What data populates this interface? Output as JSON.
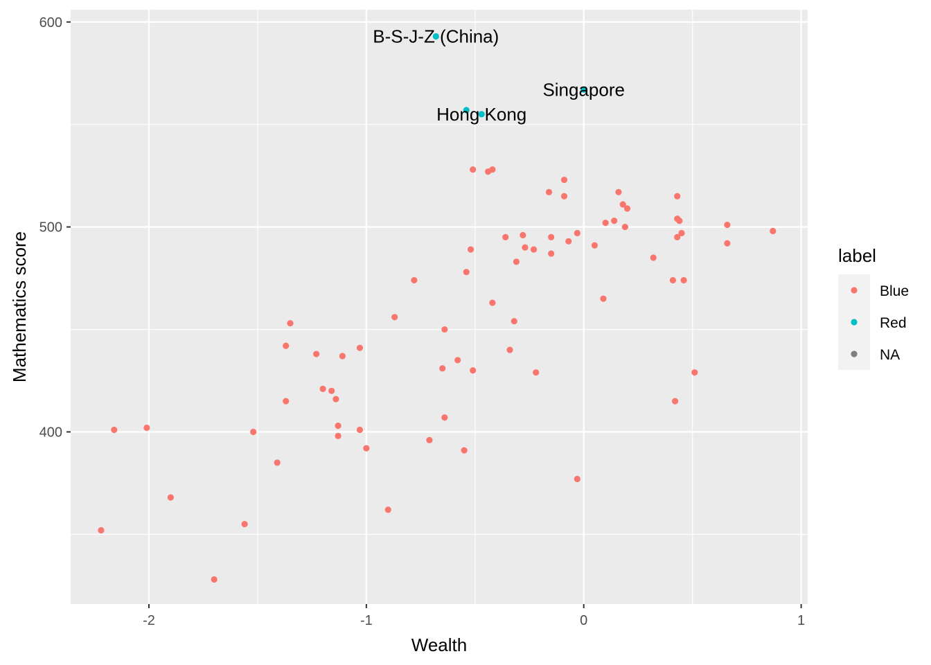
{
  "chart_data": {
    "type": "scatter",
    "title": "",
    "xlabel": "Wealth",
    "ylabel": "Mathematics score",
    "xlim": [
      -2.36,
      1.03
    ],
    "ylim": [
      316,
      606
    ],
    "x_ticks": [
      -2,
      -1,
      0,
      1
    ],
    "x_tick_labels": [
      "-2",
      "-1",
      "0",
      "1"
    ],
    "y_ticks": [
      400,
      500,
      600
    ],
    "y_tick_labels": [
      "400",
      "500",
      "600"
    ],
    "grid": true,
    "legend": {
      "title": "label",
      "position": "right",
      "entries": [
        {
          "label": "Blue",
          "color": "#F8766D"
        },
        {
          "label": "Red",
          "color": "#00BFC4"
        },
        {
          "label": "NA",
          "color": "#7F7F7F"
        }
      ]
    },
    "series": [
      {
        "name": "Blue",
        "color": "#F8766D",
        "points": [
          [
            -2.22,
            352
          ],
          [
            -2.16,
            401
          ],
          [
            -2.01,
            402
          ],
          [
            -1.9,
            368
          ],
          [
            -1.7,
            328
          ],
          [
            -1.56,
            355
          ],
          [
            -1.52,
            400
          ],
          [
            -1.41,
            385
          ],
          [
            -1.37,
            415
          ],
          [
            -1.37,
            442
          ],
          [
            -1.35,
            453
          ],
          [
            -1.23,
            438
          ],
          [
            -1.2,
            421
          ],
          [
            -1.16,
            420
          ],
          [
            -1.14,
            416
          ],
          [
            -1.13,
            403
          ],
          [
            -1.13,
            398
          ],
          [
            -1.11,
            437
          ],
          [
            -1.03,
            441
          ],
          [
            -1.03,
            401
          ],
          [
            -1.0,
            392
          ],
          [
            -0.9,
            362
          ],
          [
            -0.87,
            456
          ],
          [
            -0.78,
            474
          ],
          [
            -0.71,
            396
          ],
          [
            -0.65,
            431
          ],
          [
            -0.64,
            450
          ],
          [
            -0.64,
            407
          ],
          [
            -0.58,
            435
          ],
          [
            -0.55,
            391
          ],
          [
            -0.54,
            478
          ],
          [
            -0.52,
            489
          ],
          [
            -0.51,
            528
          ],
          [
            -0.51,
            430
          ],
          [
            -0.44,
            527
          ],
          [
            -0.42,
            528
          ],
          [
            -0.42,
            463
          ],
          [
            -0.36,
            495
          ],
          [
            -0.34,
            440
          ],
          [
            -0.32,
            454
          ],
          [
            -0.31,
            483
          ],
          [
            -0.28,
            496
          ],
          [
            -0.27,
            490
          ],
          [
            -0.23,
            489
          ],
          [
            -0.22,
            429
          ],
          [
            -0.16,
            517
          ],
          [
            -0.15,
            495
          ],
          [
            -0.15,
            487
          ],
          [
            -0.09,
            523
          ],
          [
            -0.09,
            515
          ],
          [
            -0.07,
            493
          ],
          [
            -0.03,
            497
          ],
          [
            -0.03,
            377
          ],
          [
            0.05,
            491
          ],
          [
            0.09,
            465
          ],
          [
            0.1,
            502
          ],
          [
            0.14,
            503
          ],
          [
            0.16,
            517
          ],
          [
            0.18,
            511
          ],
          [
            0.19,
            500
          ],
          [
            0.2,
            509
          ],
          [
            0.32,
            485
          ],
          [
            0.41,
            474
          ],
          [
            0.42,
            415
          ],
          [
            0.43,
            515
          ],
          [
            0.43,
            504
          ],
          [
            0.43,
            495
          ],
          [
            0.44,
            503
          ],
          [
            0.45,
            497
          ],
          [
            0.46,
            474
          ],
          [
            0.51,
            429
          ],
          [
            0.66,
            501
          ],
          [
            0.66,
            492
          ],
          [
            0.87,
            498
          ]
        ]
      },
      {
        "name": "Red",
        "color": "#00BFC4",
        "points": [
          [
            -0.68,
            593
          ],
          [
            -0.54,
            557
          ],
          [
            -0.47,
            555
          ],
          [
            0.0,
            567
          ]
        ]
      }
    ],
    "annotations": [
      {
        "text": "B-S-J-Z (China)",
        "x": -0.68,
        "y": 593
      },
      {
        "text": "Singapore",
        "x": 0.0,
        "y": 567
      },
      {
        "text": "Hong Kong",
        "x": -0.47,
        "y": 555
      }
    ]
  }
}
